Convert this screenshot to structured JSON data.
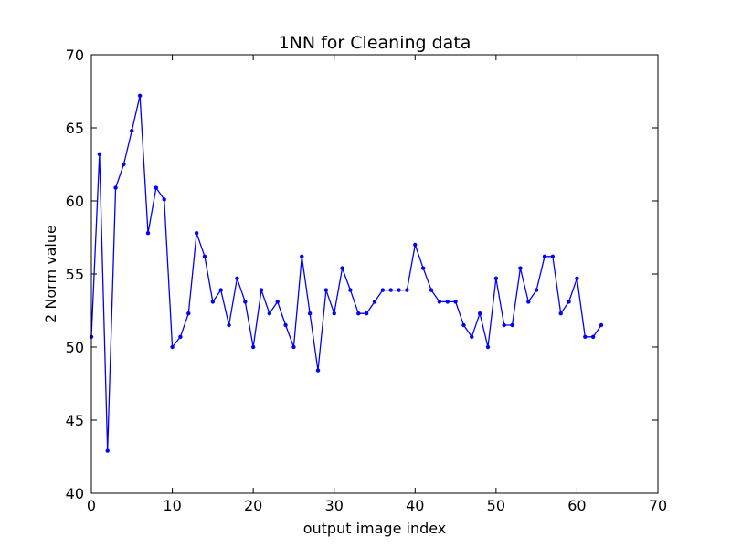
{
  "chart_data": {
    "type": "line",
    "title": "1NN for Cleaning data",
    "xlabel": "output image index",
    "ylabel": "2 Norm value",
    "xlim": [
      0,
      70
    ],
    "ylim": [
      40,
      70
    ],
    "xticks": [
      0,
      10,
      20,
      30,
      40,
      50,
      60,
      70
    ],
    "yticks": [
      40,
      45,
      50,
      55,
      60,
      65,
      70
    ],
    "grid": false,
    "series": [
      {
        "color": "#0000ff",
        "marker": "dot",
        "x": [
          0,
          1,
          2,
          3,
          4,
          5,
          6,
          7,
          8,
          9,
          10,
          11,
          12,
          13,
          14,
          15,
          16,
          17,
          18,
          19,
          20,
          21,
          22,
          23,
          24,
          25,
          26,
          27,
          28,
          29,
          30,
          31,
          32,
          33,
          34,
          35,
          36,
          37,
          38,
          39,
          40,
          41,
          42,
          43,
          44,
          45,
          46,
          47,
          48,
          49,
          50,
          51,
          52,
          53,
          54,
          55,
          56,
          57,
          58,
          59,
          60,
          61,
          62,
          63
        ],
        "y": [
          50.7,
          63.2,
          42.9,
          60.9,
          62.5,
          64.8,
          67.2,
          57.8,
          60.9,
          60.1,
          50.0,
          50.7,
          52.3,
          57.8,
          56.2,
          53.1,
          53.9,
          51.5,
          54.7,
          53.1,
          50.0,
          53.9,
          52.3,
          53.1,
          51.5,
          50.0,
          56.2,
          52.3,
          48.4,
          53.9,
          52.3,
          55.4,
          53.9,
          52.3,
          52.3,
          53.1,
          53.9,
          53.9,
          53.9,
          53.9,
          57.0,
          55.4,
          53.9,
          53.1,
          53.1,
          53.1,
          51.5,
          50.7,
          52.3,
          50.0,
          54.7,
          51.5,
          51.5,
          55.4,
          53.1,
          53.9,
          56.2,
          56.2,
          52.3,
          53.1,
          54.7,
          50.7,
          50.7,
          51.5
        ]
      }
    ]
  }
}
